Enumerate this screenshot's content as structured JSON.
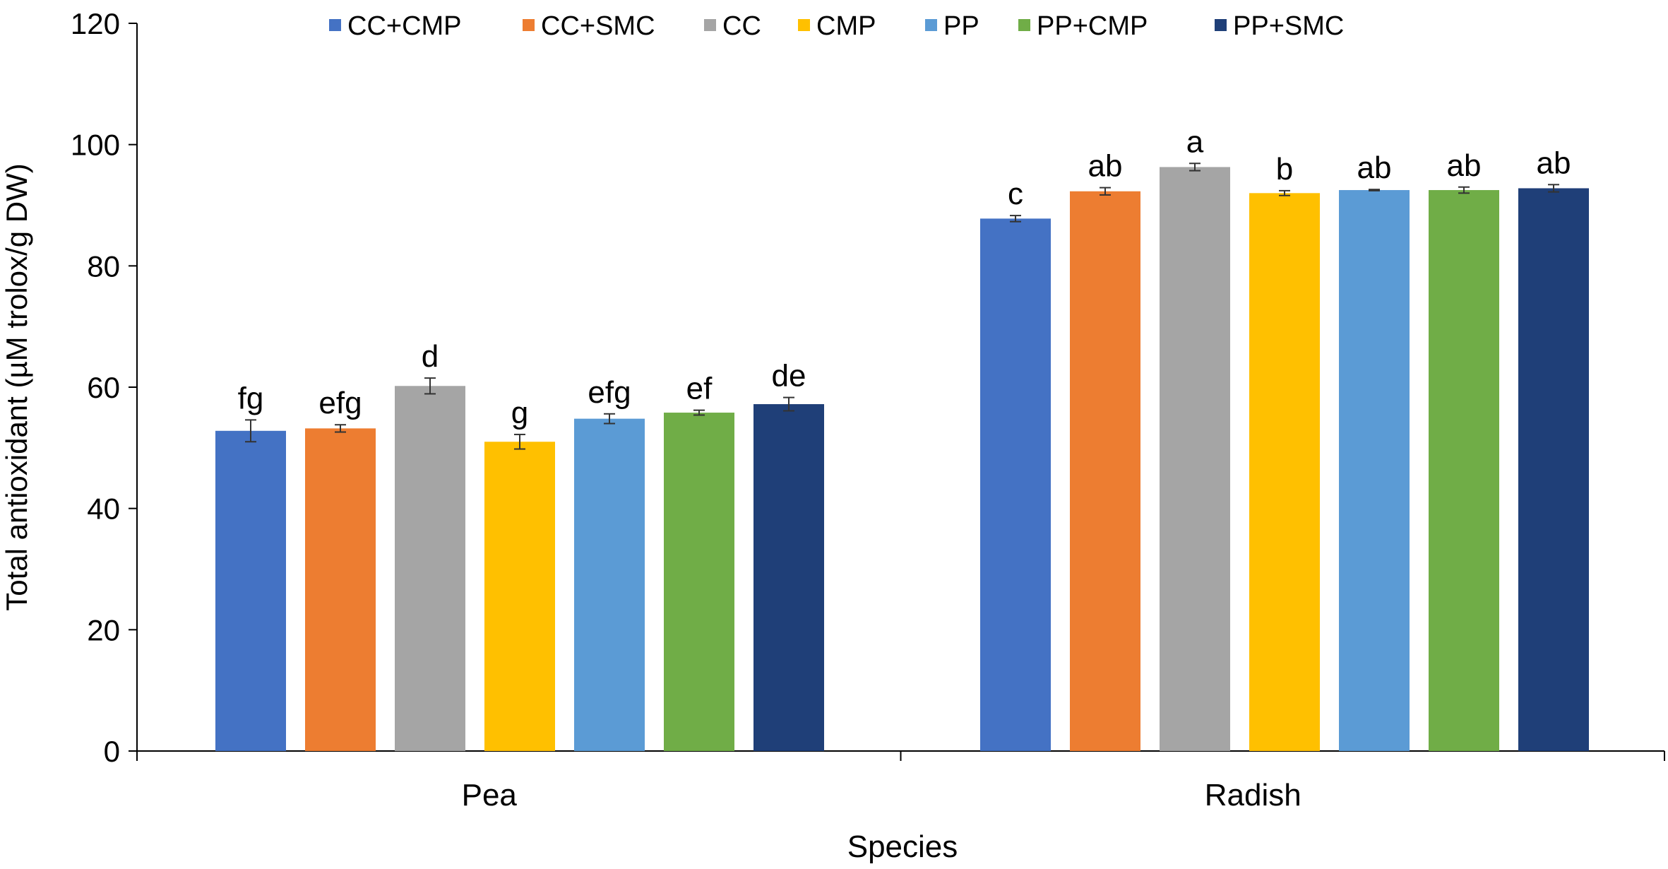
{
  "chart_data": {
    "type": "bar",
    "title": "",
    "xlabel": "Species",
    "ylabel": "Total antioxidant (µM trolox/g DW)",
    "ylim": [
      0,
      120
    ],
    "yticks": [
      0,
      20,
      40,
      60,
      80,
      100,
      120
    ],
    "categories": [
      "Pea",
      "Radish"
    ],
    "legend_position": "top",
    "grid": false,
    "series": [
      {
        "name": "CC+CMP",
        "color": "#4472C4",
        "values": [
          52.8,
          87.8
        ],
        "errors": [
          1.8,
          0.5
        ],
        "letters": [
          "fg",
          "c"
        ]
      },
      {
        "name": "CC+SMC",
        "color": "#ED7D31",
        "values": [
          53.2,
          92.3
        ],
        "errors": [
          0.6,
          0.6
        ],
        "letters": [
          "efg",
          "ab"
        ]
      },
      {
        "name": "CC",
        "color": "#A5A5A5",
        "values": [
          60.2,
          96.3
        ],
        "errors": [
          1.3,
          0.6
        ],
        "letters": [
          "d",
          "a"
        ]
      },
      {
        "name": "CMP",
        "color": "#FFC000",
        "values": [
          51.0,
          92.0
        ],
        "errors": [
          1.2,
          0.4
        ],
        "letters": [
          "g",
          "b"
        ]
      },
      {
        "name": "PP",
        "color": "#5B9BD5",
        "values": [
          54.8,
          92.5
        ],
        "errors": [
          0.8,
          0.1
        ],
        "letters": [
          "efg",
          "ab"
        ]
      },
      {
        "name": "PP+CMP",
        "color": "#70AD47",
        "values": [
          55.8,
          92.5
        ],
        "errors": [
          0.4,
          0.5
        ],
        "letters": [
          "ef",
          "ab"
        ]
      },
      {
        "name": "PP+SMC",
        "color": "#1F3F78",
        "values": [
          57.2,
          92.8
        ],
        "errors": [
          1.1,
          0.6
        ],
        "letters": [
          "de",
          "ab"
        ]
      }
    ]
  }
}
